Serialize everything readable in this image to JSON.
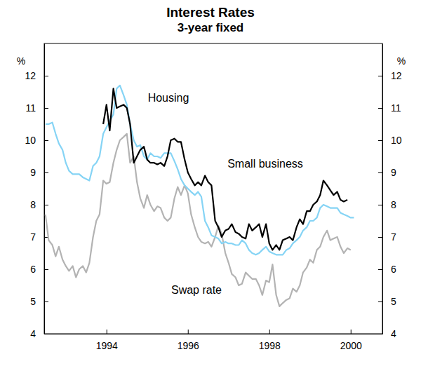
{
  "chart_data": {
    "type": "line",
    "title": "Interest Rates",
    "subtitle": "3-year fixed",
    "ylabel": "%",
    "x": [
      1992.5,
      1992.58,
      1992.67,
      1992.75,
      1992.83,
      1992.92,
      1993.0,
      1993.08,
      1993.17,
      1993.25,
      1993.33,
      1993.42,
      1993.5,
      1993.58,
      1993.67,
      1993.75,
      1993.83,
      1993.92,
      1994.0,
      1994.08,
      1994.17,
      1994.25,
      1994.33,
      1994.42,
      1994.5,
      1994.58,
      1994.67,
      1994.75,
      1994.83,
      1994.92,
      1995.0,
      1995.08,
      1995.17,
      1995.25,
      1995.33,
      1995.42,
      1995.5,
      1995.58,
      1995.67,
      1995.75,
      1995.83,
      1995.92,
      1996.0,
      1996.08,
      1996.17,
      1996.25,
      1996.33,
      1996.42,
      1996.5,
      1996.58,
      1996.67,
      1996.75,
      1996.83,
      1996.92,
      1997.0,
      1997.08,
      1997.17,
      1997.25,
      1997.33,
      1997.42,
      1997.5,
      1997.58,
      1997.67,
      1997.75,
      1997.83,
      1997.92,
      1998.0,
      1998.08,
      1998.17,
      1998.25,
      1998.33,
      1998.42,
      1998.5,
      1998.58,
      1998.67,
      1998.75,
      1998.83,
      1998.92,
      1999.0,
      1999.08,
      1999.17,
      1999.25,
      1999.33,
      1999.42,
      1999.5,
      1999.58,
      1999.67,
      1999.75,
      1999.83,
      1999.92,
      2000.0,
      2000.08,
      2000.17
    ],
    "series": [
      {
        "name": "Housing",
        "color": "#000000",
        "values": [
          null,
          null,
          null,
          null,
          null,
          null,
          null,
          null,
          null,
          null,
          null,
          null,
          null,
          null,
          null,
          null,
          null,
          10.5,
          11.1,
          10.3,
          11.6,
          11.0,
          11.05,
          11.1,
          11.0,
          10.5,
          9.3,
          9.5,
          9.7,
          9.8,
          9.4,
          9.3,
          9.3,
          9.25,
          9.3,
          9.2,
          9.5,
          10.0,
          10.05,
          9.95,
          9.95,
          9.4,
          9.0,
          8.8,
          8.6,
          8.7,
          8.6,
          8.9,
          8.7,
          8.6,
          7.5,
          7.3,
          7.0,
          7.2,
          7.25,
          7.4,
          7.15,
          7.1,
          7.0,
          6.95,
          7.4,
          7.2,
          7.3,
          7.4,
          7.0,
          7.4,
          6.8,
          6.6,
          6.75,
          6.6,
          6.9,
          6.95,
          7.0,
          6.9,
          7.3,
          7.55,
          7.4,
          7.8,
          7.8,
          8.0,
          8.1,
          8.3,
          8.75,
          8.6,
          8.45,
          8.3,
          8.4,
          8.15,
          8.1,
          8.15,
          null,
          null,
          null
        ]
      },
      {
        "name": "Small business",
        "color": "#86d4f5",
        "values": [
          10.5,
          10.5,
          10.55,
          10.2,
          9.9,
          9.7,
          9.3,
          9.05,
          8.95,
          8.95,
          8.95,
          8.85,
          8.8,
          8.75,
          9.2,
          9.3,
          9.5,
          10.2,
          10.4,
          10.6,
          10.8,
          11.6,
          11.7,
          11.4,
          11.1,
          10.5,
          10.0,
          9.8,
          9.85,
          9.5,
          9.4,
          9.6,
          9.5,
          9.5,
          9.45,
          9.6,
          9.6,
          9.6,
          9.35,
          9.1,
          8.8,
          8.6,
          8.5,
          8.4,
          8.3,
          8.4,
          8.25,
          7.5,
          7.3,
          7.05,
          7.0,
          6.95,
          6.8,
          6.85,
          6.8,
          6.8,
          6.75,
          6.75,
          6.9,
          6.8,
          6.6,
          6.5,
          6.45,
          6.5,
          6.6,
          6.7,
          6.55,
          6.5,
          6.45,
          6.45,
          6.45,
          6.6,
          6.65,
          6.8,
          6.9,
          7.0,
          7.2,
          7.3,
          7.5,
          7.5,
          7.6,
          7.9,
          8.0,
          7.95,
          7.9,
          7.9,
          7.9,
          7.75,
          7.7,
          7.65,
          7.6,
          7.6,
          null
        ]
      },
      {
        "name": "Swap rate",
        "color": "#b3b3b3",
        "values": [
          7.7,
          6.9,
          6.75,
          6.4,
          6.7,
          6.3,
          6.1,
          5.95,
          6.1,
          5.75,
          6.0,
          6.1,
          5.9,
          6.2,
          7.0,
          7.5,
          7.7,
          8.75,
          8.65,
          8.7,
          9.3,
          9.7,
          10.0,
          10.1,
          10.2,
          9.3,
          9.5,
          8.7,
          8.2,
          7.9,
          8.3,
          8.0,
          7.8,
          7.95,
          7.9,
          7.6,
          7.5,
          7.6,
          8.2,
          8.55,
          8.3,
          8.6,
          8.35,
          7.7,
          7.3,
          7.0,
          6.85,
          6.8,
          6.85,
          6.7,
          7.0,
          7.35,
          7.1,
          6.5,
          6.2,
          5.85,
          5.75,
          5.5,
          5.55,
          5.9,
          5.8,
          5.7,
          5.7,
          5.5,
          5.2,
          5.65,
          5.6,
          6.15,
          5.2,
          4.85,
          4.95,
          5.05,
          5.1,
          5.4,
          5.3,
          5.5,
          5.9,
          6.05,
          6.3,
          6.2,
          6.6,
          6.7,
          7.0,
          7.2,
          6.9,
          6.95,
          7.0,
          6.7,
          6.5,
          6.65,
          6.6,
          null,
          null
        ]
      }
    ],
    "xlim": [
      1992.47,
      2000.78
    ],
    "xticks": [
      1994,
      1996,
      1998,
      2000
    ],
    "ylim": [
      4,
      13
    ],
    "yticks": [
      4,
      5,
      6,
      7,
      8,
      9,
      10,
      11,
      12
    ],
    "grid": false
  }
}
